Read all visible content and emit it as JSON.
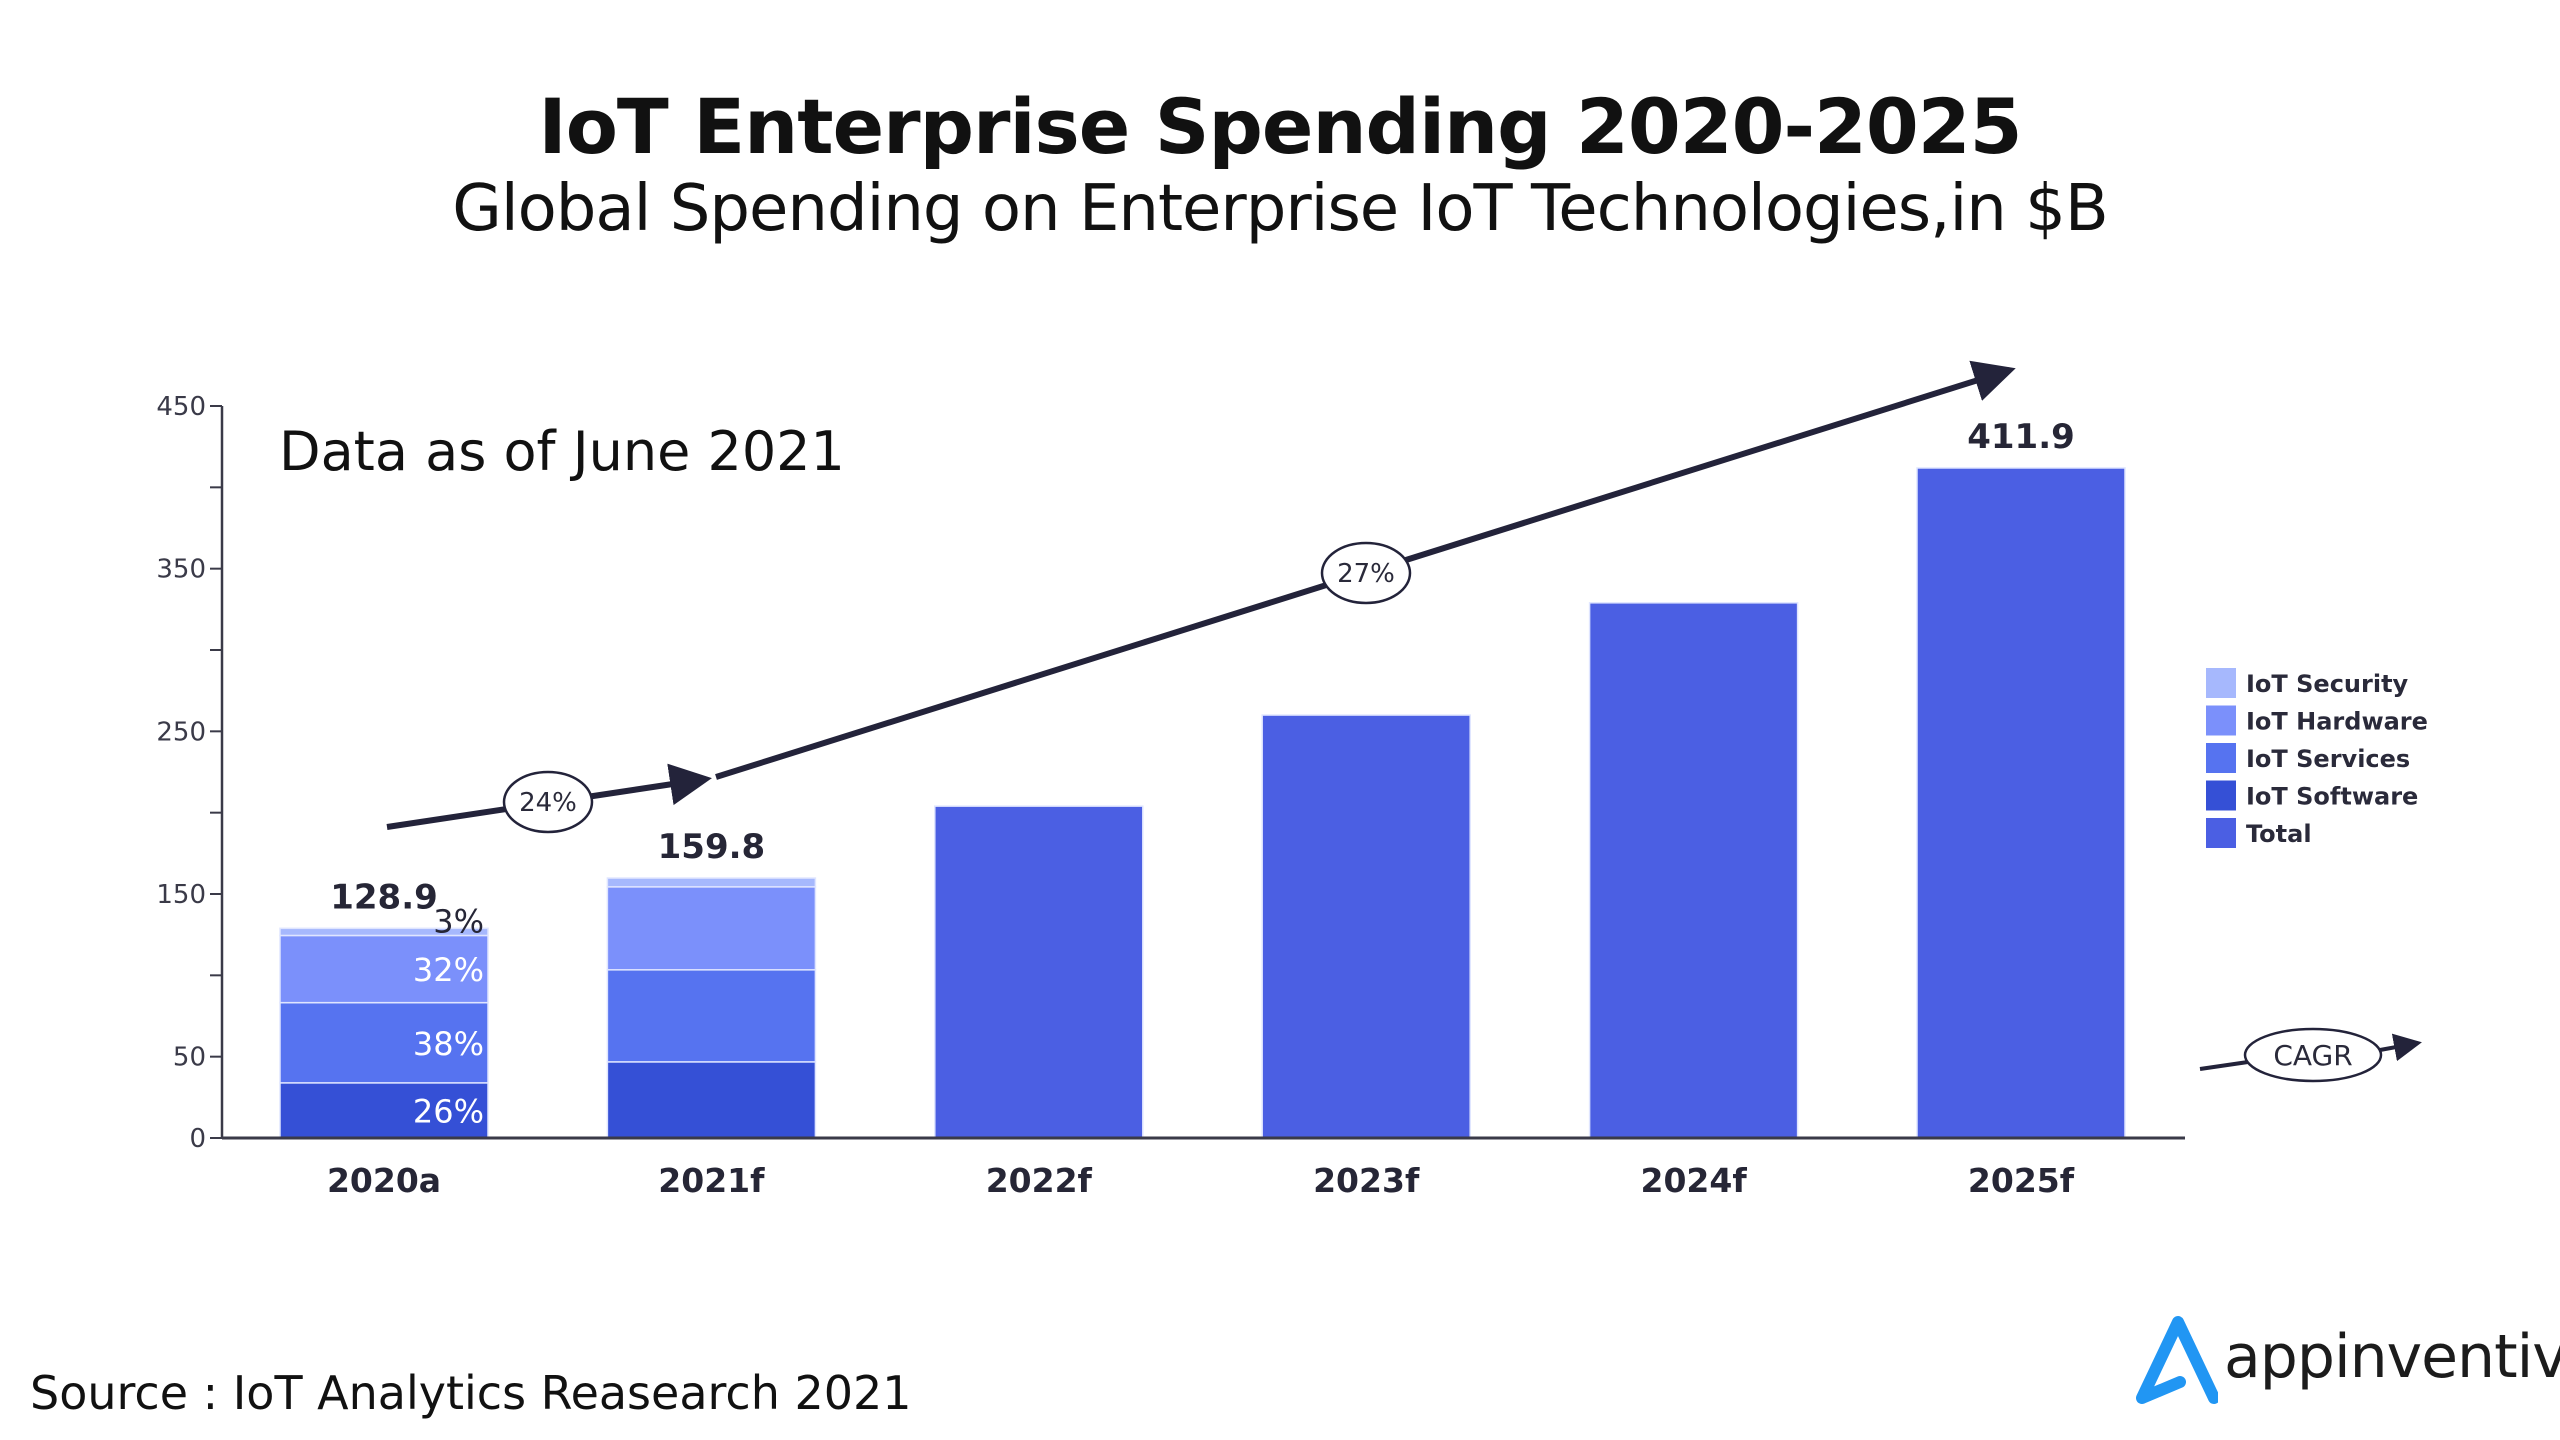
{
  "header": {
    "title": "IoT Enterprise Spending 2020-2025",
    "subtitle": "Global Spending on Enterprise IoT Technologies,in $B"
  },
  "footer": {
    "source": "Source : IoT Analytics Reasearch 2021",
    "logo_text": "appinventiv",
    "logo_color": "#2196F3"
  },
  "chart_data": {
    "type": "bar",
    "stacked": true,
    "title": "IoT Enterprise Spending 2020-2025",
    "subtitle": "Global Spending on Enterprise IoT Technologies,in $B",
    "annotation": "Data as of June 2021",
    "xlabel": "",
    "ylabel": "",
    "ylim": [
      0,
      450
    ],
    "yticks": [
      0,
      50,
      150,
      250,
      350,
      450
    ],
    "yminor_ticks": [
      100,
      200,
      300,
      400
    ],
    "grid": false,
    "categories": [
      "2020a",
      "2021f",
      "2022f",
      "2023f",
      "2024f",
      "2025f"
    ],
    "series": [
      {
        "name": "IoT Software",
        "color": "#3550D6",
        "values": [
          33.9,
          46.8,
          null,
          null,
          null,
          null
        ]
      },
      {
        "name": "IoT Services",
        "color": "#5673F0",
        "values": [
          49.3,
          56.6,
          null,
          null,
          null,
          null
        ]
      },
      {
        "name": "IoT Hardware",
        "color": "#7B90FB",
        "values": [
          41.3,
          51.0,
          null,
          null,
          null,
          null
        ]
      },
      {
        "name": "IoT Security",
        "color": "#A6B8FD",
        "values": [
          4.4,
          5.4,
          null,
          null,
          null,
          null
        ]
      },
      {
        "name": "Total",
        "color": "#4B5FE3",
        "values": [
          null,
          null,
          204,
          260,
          329,
          411.9
        ]
      }
    ],
    "totals": [
      128.9,
      159.8,
      204,
      260,
      329,
      411.9
    ],
    "value_labels": [
      {
        "category": "2020a",
        "text": "128.9"
      },
      {
        "category": "2021f",
        "text": "159.8"
      },
      {
        "category": "2025f",
        "text": "411.9"
      }
    ],
    "segment_labels_2020a": [
      {
        "series": "IoT Software",
        "text": "26%"
      },
      {
        "series": "IoT Services",
        "text": "38%"
      },
      {
        "series": "IoT Hardware",
        "text": "32%"
      },
      {
        "series": "IoT Security",
        "text": "3%"
      }
    ],
    "legend": {
      "position": "right",
      "items": [
        {
          "label": "IoT Security",
          "color": "#A6B8FD"
        },
        {
          "label": "IoT Hardware",
          "color": "#7B90FB"
        },
        {
          "label": "IoT Services",
          "color": "#5673F0"
        },
        {
          "label": "IoT Software",
          "color": "#3550D6"
        },
        {
          "label": "Total",
          "color": "#4B5FE3"
        }
      ]
    },
    "cagr_arrows": [
      {
        "from": "2020a",
        "to": "2021f",
        "label": "24%"
      },
      {
        "from": "2021f",
        "to": "2025f",
        "label": "27%"
      }
    ],
    "cagr_legend_label": "CAGR"
  }
}
